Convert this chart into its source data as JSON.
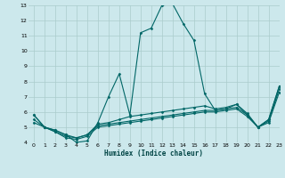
{
  "xlabel": "Humidex (Indice chaleur)",
  "background_color": "#cce8ec",
  "grid_color": "#aacccc",
  "line_color": "#006666",
  "xlim": [
    -0.5,
    23
  ],
  "ylim": [
    4,
    13
  ],
  "yticks": [
    4,
    5,
    6,
    7,
    8,
    9,
    10,
    11,
    12,
    13
  ],
  "xticks": [
    0,
    1,
    2,
    3,
    4,
    5,
    6,
    7,
    8,
    9,
    10,
    11,
    12,
    13,
    14,
    15,
    16,
    17,
    18,
    19,
    20,
    21,
    22,
    23
  ],
  "line1_x": [
    0,
    1,
    2,
    3,
    4,
    5,
    6,
    7,
    8,
    9,
    10,
    11,
    12,
    13,
    14,
    15,
    16,
    17,
    18,
    19,
    20,
    21,
    22,
    23
  ],
  "line1_y": [
    5.8,
    5.0,
    4.8,
    4.5,
    4.0,
    4.1,
    5.3,
    7.0,
    8.5,
    5.8,
    11.2,
    11.5,
    13.0,
    13.1,
    11.8,
    10.7,
    7.2,
    6.1,
    6.2,
    6.5,
    5.8,
    5.0,
    5.5,
    7.7
  ],
  "line2_x": [
    0,
    1,
    2,
    3,
    4,
    5,
    6,
    7,
    8,
    9,
    10,
    11,
    12,
    13,
    14,
    15,
    16,
    17,
    18,
    19,
    20,
    21,
    22,
    23
  ],
  "line2_y": [
    5.8,
    5.0,
    4.8,
    4.5,
    4.3,
    4.5,
    5.2,
    5.3,
    5.5,
    5.7,
    5.8,
    5.9,
    6.0,
    6.1,
    6.2,
    6.3,
    6.4,
    6.2,
    6.3,
    6.5,
    5.9,
    5.0,
    5.5,
    7.7
  ],
  "line3_x": [
    0,
    1,
    2,
    3,
    4,
    5,
    6,
    7,
    8,
    9,
    10,
    11,
    12,
    13,
    14,
    15,
    16,
    17,
    18,
    19,
    20,
    21,
    22,
    23
  ],
  "line3_y": [
    5.5,
    5.0,
    4.7,
    4.4,
    4.3,
    4.5,
    5.1,
    5.2,
    5.3,
    5.4,
    5.5,
    5.6,
    5.7,
    5.8,
    5.9,
    6.0,
    6.1,
    6.1,
    6.2,
    6.3,
    5.8,
    5.0,
    5.4,
    7.5
  ],
  "line4_x": [
    0,
    1,
    2,
    3,
    4,
    5,
    6,
    7,
    8,
    9,
    10,
    11,
    12,
    13,
    14,
    15,
    16,
    17,
    18,
    19,
    20,
    21,
    22,
    23
  ],
  "line4_y": [
    5.3,
    5.0,
    4.7,
    4.3,
    4.2,
    4.4,
    5.0,
    5.1,
    5.2,
    5.3,
    5.4,
    5.5,
    5.6,
    5.7,
    5.8,
    5.9,
    6.0,
    6.0,
    6.1,
    6.2,
    5.7,
    5.0,
    5.3,
    7.3
  ]
}
